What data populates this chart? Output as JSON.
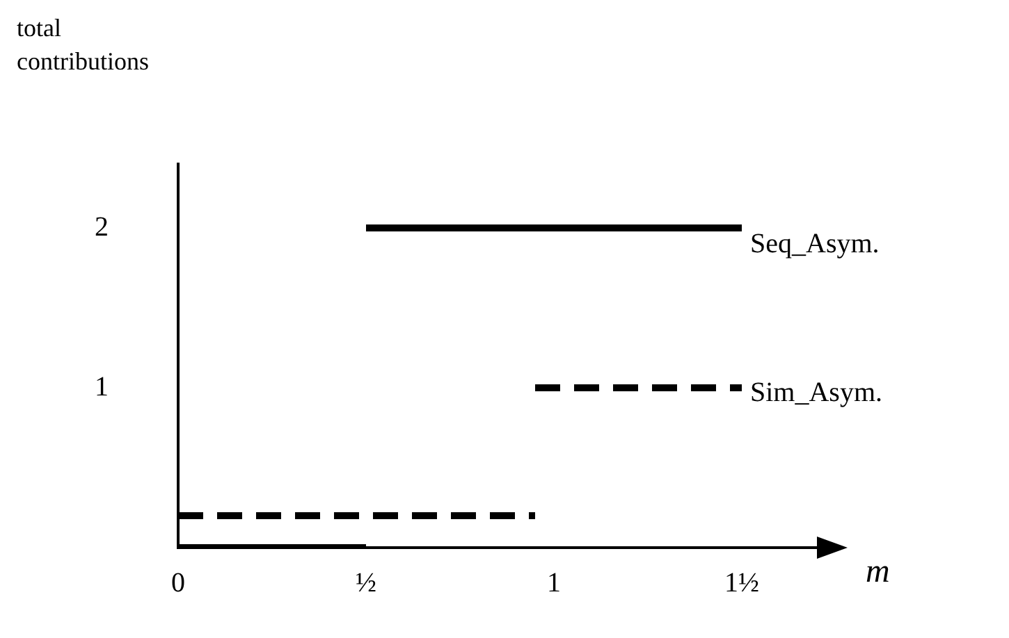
{
  "chart_data": {
    "type": "line",
    "ylabel": "total contributions",
    "xlabel": "m",
    "legend": false,
    "grid": false,
    "marker": "none",
    "xlim": [
      0,
      1.7
    ],
    "xticks": [
      {
        "value": 0,
        "label": "0"
      },
      {
        "value": 0.5,
        "label": "½"
      },
      {
        "value": 1,
        "label": "1"
      },
      {
        "value": 1.5,
        "label": "1½"
      }
    ],
    "ylim": [
      0,
      2.4
    ],
    "yticks": [
      1,
      2
    ],
    "series": [
      {
        "color": "#000000",
        "line_style": "solid",
        "x": [
          0,
          0.5
        ],
        "values": [
          0,
          0
        ]
      },
      {
        "name": "Seq_Asym.",
        "color": "#000000",
        "line_style": "solid",
        "x": [
          0.5,
          1.5
        ],
        "values": [
          2,
          2
        ]
      },
      {
        "color": "#000000",
        "line_style": "dashed",
        "x": [
          0,
          0.95
        ],
        "values": [
          0.2,
          0.2
        ]
      },
      {
        "name": "Sim_Asym.",
        "color": "#000000",
        "line_style": "dashed",
        "x": [
          0.95,
          1.5
        ],
        "values": [
          1,
          1
        ]
      }
    ]
  }
}
